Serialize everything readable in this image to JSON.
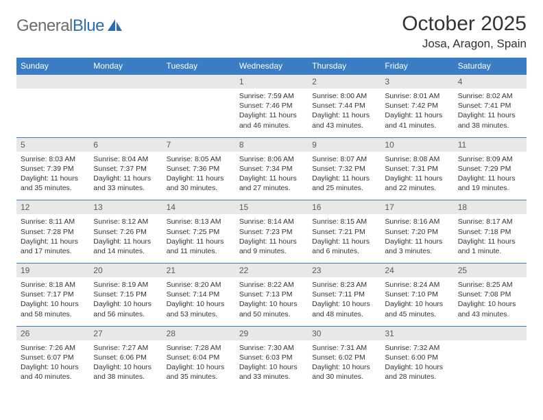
{
  "brand": {
    "text_general": "General",
    "text_blue": "Blue",
    "general_color": "#6b6b6b",
    "blue_color": "#2a6db3",
    "icon_color": "#2a6db3"
  },
  "header": {
    "title": "October 2025",
    "location": "Josa, Aragon, Spain",
    "title_color": "#333333",
    "title_fontsize": 30,
    "location_fontsize": 17
  },
  "style": {
    "header_bg": "#3b7dc4",
    "header_text": "#ffffff",
    "daynum_bg": "#e8e8e8",
    "daynum_text": "#5a5a5a",
    "daynum_border_top": "#3b7dc4",
    "body_text": "#333333",
    "body_fontsize": 10.5,
    "head_fontsize": 12,
    "page_bg": "#ffffff"
  },
  "day_names": [
    "Sunday",
    "Monday",
    "Tuesday",
    "Wednesday",
    "Thursday",
    "Friday",
    "Saturday"
  ],
  "weeks": [
    {
      "nums": [
        "",
        "",
        "",
        "1",
        "2",
        "3",
        "4"
      ],
      "cells": [
        [],
        [],
        [],
        [
          "Sunrise: 7:59 AM",
          "Sunset: 7:46 PM",
          "Daylight: 11 hours",
          "and 46 minutes."
        ],
        [
          "Sunrise: 8:00 AM",
          "Sunset: 7:44 PM",
          "Daylight: 11 hours",
          "and 43 minutes."
        ],
        [
          "Sunrise: 8:01 AM",
          "Sunset: 7:42 PM",
          "Daylight: 11 hours",
          "and 41 minutes."
        ],
        [
          "Sunrise: 8:02 AM",
          "Sunset: 7:41 PM",
          "Daylight: 11 hours",
          "and 38 minutes."
        ]
      ]
    },
    {
      "nums": [
        "5",
        "6",
        "7",
        "8",
        "9",
        "10",
        "11"
      ],
      "cells": [
        [
          "Sunrise: 8:03 AM",
          "Sunset: 7:39 PM",
          "Daylight: 11 hours",
          "and 35 minutes."
        ],
        [
          "Sunrise: 8:04 AM",
          "Sunset: 7:37 PM",
          "Daylight: 11 hours",
          "and 33 minutes."
        ],
        [
          "Sunrise: 8:05 AM",
          "Sunset: 7:36 PM",
          "Daylight: 11 hours",
          "and 30 minutes."
        ],
        [
          "Sunrise: 8:06 AM",
          "Sunset: 7:34 PM",
          "Daylight: 11 hours",
          "and 27 minutes."
        ],
        [
          "Sunrise: 8:07 AM",
          "Sunset: 7:32 PM",
          "Daylight: 11 hours",
          "and 25 minutes."
        ],
        [
          "Sunrise: 8:08 AM",
          "Sunset: 7:31 PM",
          "Daylight: 11 hours",
          "and 22 minutes."
        ],
        [
          "Sunrise: 8:09 AM",
          "Sunset: 7:29 PM",
          "Daylight: 11 hours",
          "and 19 minutes."
        ]
      ]
    },
    {
      "nums": [
        "12",
        "13",
        "14",
        "15",
        "16",
        "17",
        "18"
      ],
      "cells": [
        [
          "Sunrise: 8:11 AM",
          "Sunset: 7:28 PM",
          "Daylight: 11 hours",
          "and 17 minutes."
        ],
        [
          "Sunrise: 8:12 AM",
          "Sunset: 7:26 PM",
          "Daylight: 11 hours",
          "and 14 minutes."
        ],
        [
          "Sunrise: 8:13 AM",
          "Sunset: 7:25 PM",
          "Daylight: 11 hours",
          "and 11 minutes."
        ],
        [
          "Sunrise: 8:14 AM",
          "Sunset: 7:23 PM",
          "Daylight: 11 hours",
          "and 9 minutes."
        ],
        [
          "Sunrise: 8:15 AM",
          "Sunset: 7:21 PM",
          "Daylight: 11 hours",
          "and 6 minutes."
        ],
        [
          "Sunrise: 8:16 AM",
          "Sunset: 7:20 PM",
          "Daylight: 11 hours",
          "and 3 minutes."
        ],
        [
          "Sunrise: 8:17 AM",
          "Sunset: 7:18 PM",
          "Daylight: 11 hours",
          "and 1 minute."
        ]
      ]
    },
    {
      "nums": [
        "19",
        "20",
        "21",
        "22",
        "23",
        "24",
        "25"
      ],
      "cells": [
        [
          "Sunrise: 8:18 AM",
          "Sunset: 7:17 PM",
          "Daylight: 10 hours",
          "and 58 minutes."
        ],
        [
          "Sunrise: 8:19 AM",
          "Sunset: 7:15 PM",
          "Daylight: 10 hours",
          "and 56 minutes."
        ],
        [
          "Sunrise: 8:20 AM",
          "Sunset: 7:14 PM",
          "Daylight: 10 hours",
          "and 53 minutes."
        ],
        [
          "Sunrise: 8:22 AM",
          "Sunset: 7:13 PM",
          "Daylight: 10 hours",
          "and 50 minutes."
        ],
        [
          "Sunrise: 8:23 AM",
          "Sunset: 7:11 PM",
          "Daylight: 10 hours",
          "and 48 minutes."
        ],
        [
          "Sunrise: 8:24 AM",
          "Sunset: 7:10 PM",
          "Daylight: 10 hours",
          "and 45 minutes."
        ],
        [
          "Sunrise: 8:25 AM",
          "Sunset: 7:08 PM",
          "Daylight: 10 hours",
          "and 43 minutes."
        ]
      ]
    },
    {
      "nums": [
        "26",
        "27",
        "28",
        "29",
        "30",
        "31",
        ""
      ],
      "cells": [
        [
          "Sunrise: 7:26 AM",
          "Sunset: 6:07 PM",
          "Daylight: 10 hours",
          "and 40 minutes."
        ],
        [
          "Sunrise: 7:27 AM",
          "Sunset: 6:06 PM",
          "Daylight: 10 hours",
          "and 38 minutes."
        ],
        [
          "Sunrise: 7:28 AM",
          "Sunset: 6:04 PM",
          "Daylight: 10 hours",
          "and 35 minutes."
        ],
        [
          "Sunrise: 7:30 AM",
          "Sunset: 6:03 PM",
          "Daylight: 10 hours",
          "and 33 minutes."
        ],
        [
          "Sunrise: 7:31 AM",
          "Sunset: 6:02 PM",
          "Daylight: 10 hours",
          "and 30 minutes."
        ],
        [
          "Sunrise: 7:32 AM",
          "Sunset: 6:00 PM",
          "Daylight: 10 hours",
          "and 28 minutes."
        ],
        []
      ]
    }
  ]
}
